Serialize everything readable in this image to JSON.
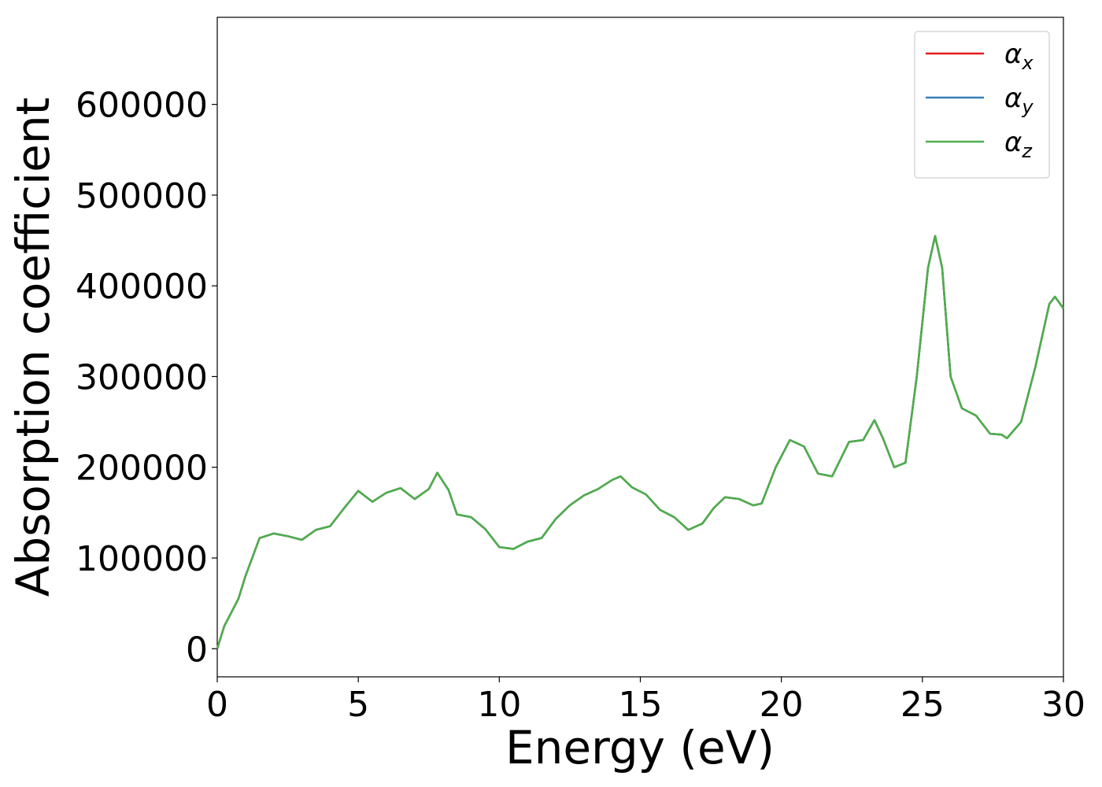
{
  "chart_data": {
    "type": "line",
    "xlabel": "Energy (eV)",
    "ylabel": "Absorption coefficient",
    "x": [
      0,
      0.25,
      0.5,
      0.75,
      1,
      1.5,
      2,
      2.5,
      3,
      3.5,
      4,
      4.5,
      5,
      5.5,
      6,
      6.5,
      7,
      7.5,
      7.8,
      8.2,
      8.5,
      9,
      9.5,
      10,
      10.5,
      11,
      11.5,
      12,
      12.5,
      13,
      13.5,
      14,
      14.3,
      14.7,
      15.2,
      15.7,
      16.2,
      16.7,
      17.2,
      17.6,
      18,
      18.5,
      19,
      19.3,
      19.8,
      20.3,
      20.8,
      21.3,
      21.8,
      22.4,
      22.9,
      23.3,
      23.6,
      24,
      24.4,
      24.8,
      25.2,
      25.45,
      25.7,
      26,
      26.4,
      26.9,
      27.4,
      27.8,
      28,
      28.5,
      29,
      29.5,
      29.7,
      30
    ],
    "series": [
      {
        "name": "αx",
        "color": "#e41a1c",
        "values": [
          0,
          25000,
          40000,
          55000,
          80000,
          122000,
          127000,
          124000,
          120000,
          131000,
          135000,
          155000,
          174000,
          162000,
          172000,
          177000,
          165000,
          176000,
          194000,
          175000,
          148000,
          145000,
          132000,
          112000,
          110000,
          118000,
          122000,
          143000,
          158000,
          169000,
          176000,
          186000,
          190000,
          178000,
          170000,
          153000,
          145000,
          131000,
          138000,
          155000,
          167000,
          165000,
          158000,
          160000,
          200000,
          230000,
          223000,
          193000,
          190000,
          228000,
          230000,
          252000,
          232000,
          200000,
          205000,
          300000,
          420000,
          455000,
          420000,
          300000,
          265000,
          257000,
          237000,
          236000,
          232000,
          250000,
          310000,
          380000,
          388000,
          375000
        ]
      },
      {
        "name": "αy",
        "color": "#377eb8",
        "values": [
          0,
          25000,
          40000,
          55000,
          80000,
          122000,
          127000,
          124000,
          120000,
          131000,
          135000,
          155000,
          174000,
          162000,
          172000,
          177000,
          165000,
          176000,
          194000,
          175000,
          148000,
          145000,
          132000,
          112000,
          110000,
          118000,
          122000,
          143000,
          158000,
          169000,
          176000,
          186000,
          190000,
          178000,
          170000,
          153000,
          145000,
          131000,
          138000,
          155000,
          167000,
          165000,
          158000,
          160000,
          200000,
          230000,
          223000,
          193000,
          190000,
          228000,
          230000,
          252000,
          232000,
          200000,
          205000,
          300000,
          420000,
          455000,
          420000,
          300000,
          265000,
          257000,
          237000,
          236000,
          232000,
          250000,
          310000,
          380000,
          388000,
          375000
        ]
      },
      {
        "name": "αz",
        "color": "#4daf4a",
        "values": [
          0,
          25000,
          40000,
          55000,
          80000,
          122000,
          127000,
          124000,
          120000,
          131000,
          135000,
          155000,
          174000,
          162000,
          172000,
          177000,
          165000,
          176000,
          194000,
          175000,
          148000,
          145000,
          132000,
          112000,
          110000,
          118000,
          122000,
          143000,
          158000,
          169000,
          176000,
          186000,
          190000,
          178000,
          170000,
          153000,
          145000,
          131000,
          138000,
          155000,
          167000,
          165000,
          158000,
          160000,
          200000,
          230000,
          223000,
          193000,
          190000,
          228000,
          230000,
          252000,
          232000,
          200000,
          205000,
          300000,
          420000,
          455000,
          420000,
          300000,
          265000,
          257000,
          237000,
          236000,
          232000,
          250000,
          310000,
          380000,
          388000,
          375000
        ]
      }
    ],
    "xlim": [
      0,
      30
    ],
    "xticks": [
      0,
      5,
      10,
      15,
      20,
      25,
      30
    ],
    "ylim": [
      -31000,
      696000
    ],
    "yticks": [
      0,
      100000,
      200000,
      300000,
      400000,
      500000,
      600000
    ],
    "legend": "upper right"
  }
}
